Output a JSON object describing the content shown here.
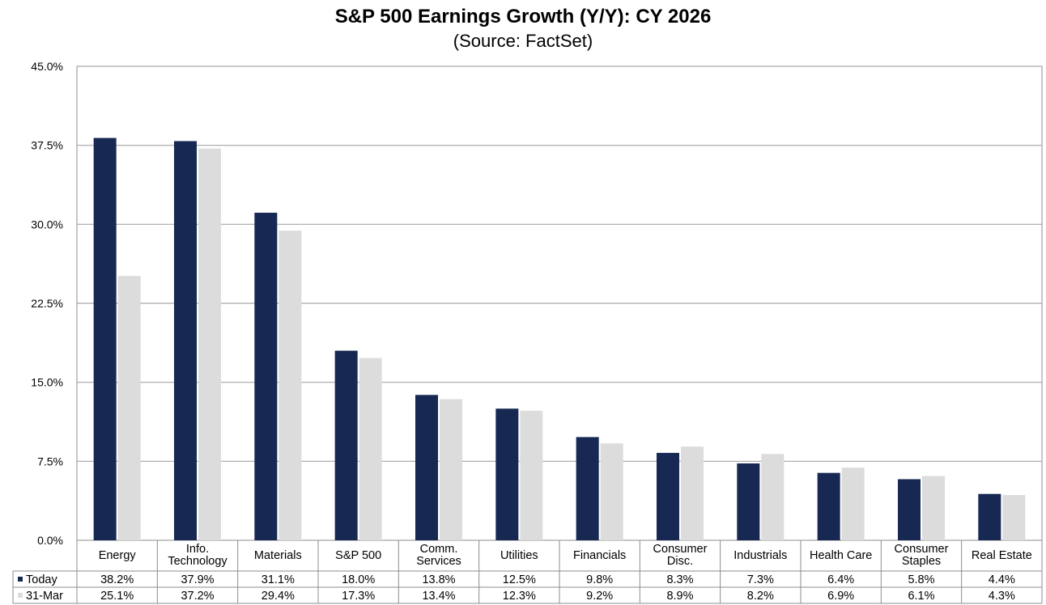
{
  "chart_data": {
    "type": "bar",
    "title": "S&P 500 Earnings Growth (Y/Y): CY 2026",
    "subtitle": "(Source: FactSet)",
    "xlabel": "",
    "ylabel": "",
    "ylim": [
      0,
      45
    ],
    "yticks": [
      0,
      7.5,
      15,
      22.5,
      30,
      37.5,
      45
    ],
    "ytick_labels": [
      "0.0%",
      "7.5%",
      "15.0%",
      "22.5%",
      "30.0%",
      "37.5%",
      "45.0%"
    ],
    "grid": true,
    "legend_placement": "data-table-left",
    "categories": [
      [
        "Energy"
      ],
      [
        "Info.",
        "Technology"
      ],
      [
        "Materials"
      ],
      [
        "S&P 500"
      ],
      [
        "Comm.",
        "Services"
      ],
      [
        "Utilities"
      ],
      [
        "Financials"
      ],
      [
        "Consumer",
        "Disc."
      ],
      [
        "Industrials"
      ],
      [
        "Health Care"
      ],
      [
        "Consumer",
        "Staples"
      ],
      [
        "Real Estate"
      ]
    ],
    "series": [
      {
        "name": "Today",
        "color": "#172853",
        "values": [
          38.2,
          37.9,
          31.1,
          18.0,
          13.8,
          12.5,
          9.8,
          8.3,
          7.3,
          6.4,
          5.8,
          4.4
        ],
        "labels": [
          "38.2%",
          "37.9%",
          "31.1%",
          "18.0%",
          "13.8%",
          "12.5%",
          "9.8%",
          "8.3%",
          "7.3%",
          "6.4%",
          "5.8%",
          "4.4%"
        ]
      },
      {
        "name": "31-Mar",
        "color": "#dcdcdc",
        "values": [
          25.1,
          37.2,
          29.4,
          17.3,
          13.4,
          12.3,
          9.2,
          8.9,
          8.2,
          6.9,
          6.1,
          4.3
        ],
        "labels": [
          "25.1%",
          "37.2%",
          "29.4%",
          "17.3%",
          "13.4%",
          "12.3%",
          "9.2%",
          "8.9%",
          "8.2%",
          "6.9%",
          "6.1%",
          "4.3%"
        ]
      }
    ]
  }
}
